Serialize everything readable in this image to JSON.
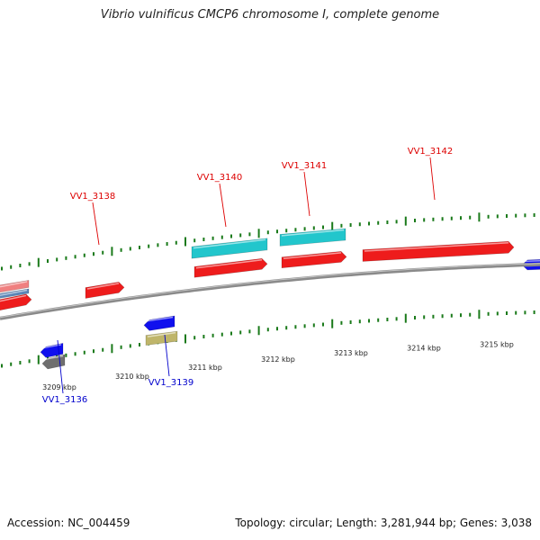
{
  "title": "Vibrio vulnificus CMCP6 chromosome I, complete genome",
  "footer": {
    "accession": "Accession: NC_004459",
    "summary": "Topology: circular; Length: 3,281,944 bp; Genes: 3,038"
  },
  "colors": {
    "forward_label": "#dd0000",
    "reverse_label": "#0000cc",
    "backbone": "#8a8a8a",
    "tick": "#1a7a1a"
  },
  "scale_labels": [
    "3209 kbp",
    "3210 kbp",
    "3211 kbp",
    "3212 kbp",
    "3213 kbp",
    "3214 kbp",
    "3215 kbp"
  ],
  "gene_labels": [
    {
      "name": "VV1_3136",
      "strand": "reverse"
    },
    {
      "name": "VV1_3138",
      "strand": "forward"
    },
    {
      "name": "VV1_3139",
      "strand": "reverse"
    },
    {
      "name": "VV1_3140",
      "strand": "forward"
    },
    {
      "name": "VV1_3141",
      "strand": "forward"
    },
    {
      "name": "VV1_3142",
      "strand": "forward"
    }
  ]
}
